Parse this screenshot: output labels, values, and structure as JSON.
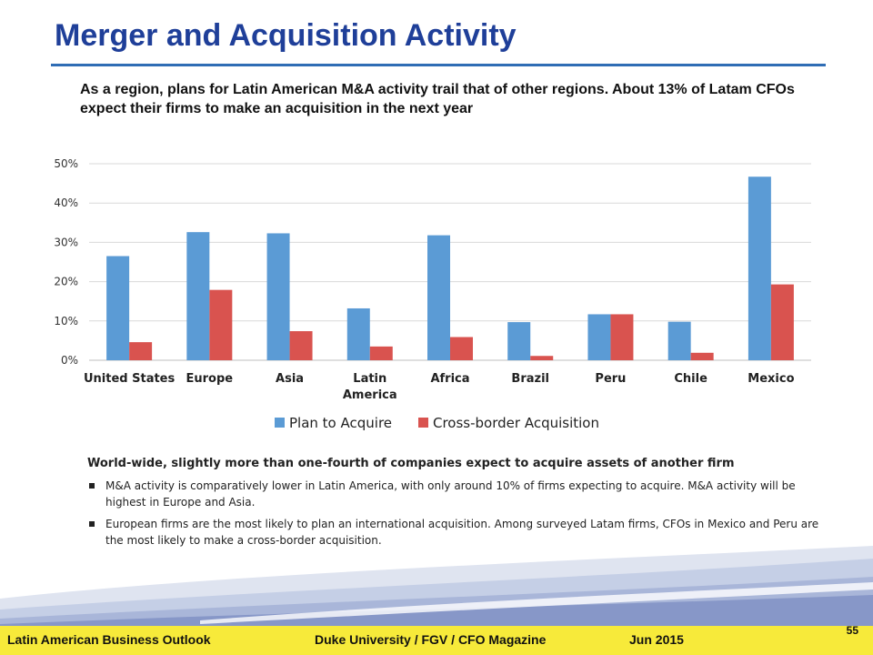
{
  "slide": {
    "title": "Merger and Acquisition Activity",
    "subtitle": "As a region, plans for Latin American M&A activity trail that of other regions. About 13% of Latam CFOs expect their firms to make an acquisition in the next year"
  },
  "chart_data": {
    "type": "bar",
    "categories": [
      "United States",
      "Europe",
      "Asia",
      "Latin\nAmerica",
      "Africa",
      "Brazil",
      "Peru",
      "Chile",
      "Mexico"
    ],
    "series": [
      {
        "name": "Plan to Acquire",
        "values": [
          26.5,
          32.6,
          32.3,
          13.2,
          31.8,
          9.7,
          11.7,
          9.8,
          46.7
        ],
        "color": "#5b9bd5"
      },
      {
        "name": "Cross-border Acquisition",
        "values": [
          4.6,
          17.9,
          7.4,
          3.5,
          5.9,
          1.1,
          11.7,
          1.9,
          19.3
        ],
        "color": "#d9534f"
      }
    ],
    "ylim": [
      0,
      50
    ],
    "yticks": [
      "0%",
      "10%",
      "20%",
      "30%",
      "40%",
      "50%"
    ],
    "grid": true,
    "legend": "bottom"
  },
  "body": {
    "lead": "World-wide, slightly more than one-fourth of companies expect to acquire assets of another firm",
    "bullets": [
      "M&A activity is comparatively lower in Latin America, with only around 10% of firms expecting to acquire. M&A activity will be highest in Europe and Asia.",
      "European firms are the most likely to plan an international acquisition. Among surveyed Latam firms, CFOs in Mexico and Peru are the most likely to make a cross-border acquisition."
    ]
  },
  "footer": {
    "left": "Latin American Business Outlook",
    "center": "Duke University / FGV / CFO Magazine",
    "date": "Jun 2015",
    "page": "55"
  },
  "colors": {
    "title": "#1f3f99",
    "rule": "#2f6db5",
    "footer_bar": "#f7ea3a"
  }
}
